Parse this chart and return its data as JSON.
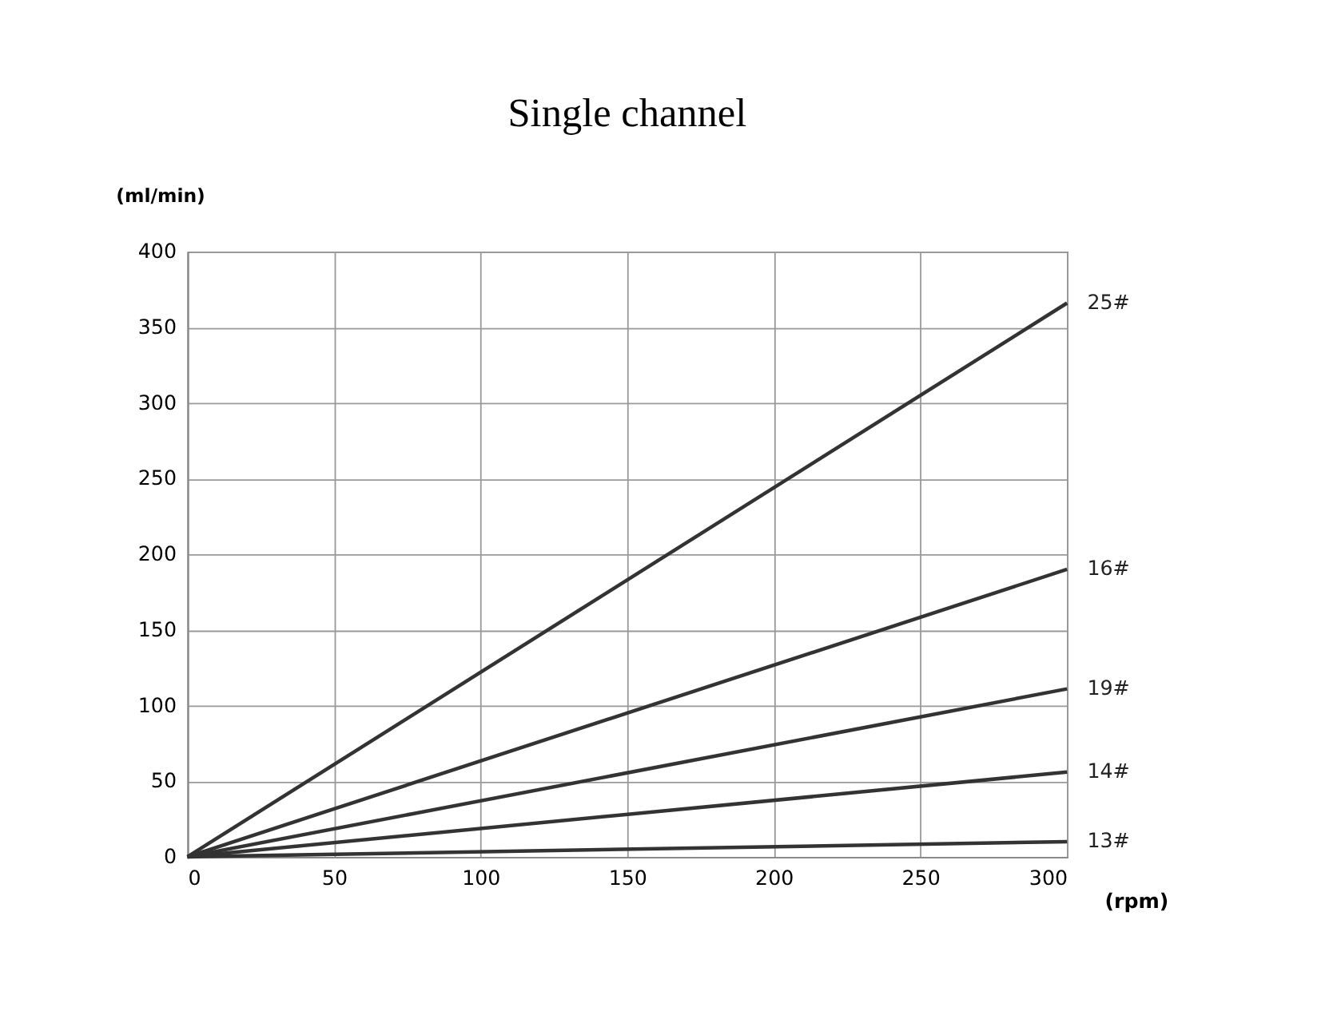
{
  "chart_data": {
    "type": "line",
    "title": "Single channel",
    "xlabel": "(rpm)",
    "ylabel": "(ml/min)",
    "x": [
      0,
      300
    ],
    "series": [
      {
        "name": "25#",
        "color": "#333333",
        "values": [
          0,
          366
        ]
      },
      {
        "name": "16#",
        "color": "#333333",
        "values": [
          0,
          190
        ]
      },
      {
        "name": "19#",
        "color": "#333333",
        "values": [
          0,
          111
        ]
      },
      {
        "name": "14#",
        "color": "#333333",
        "values": [
          0,
          56
        ]
      },
      {
        "name": "13#",
        "color": "#333333",
        "values": [
          0,
          10
        ]
      }
    ],
    "xlim": [
      0,
      300
    ],
    "xticks": [
      0,
      50,
      100,
      150,
      200,
      250,
      300
    ],
    "ylim": [
      0,
      400
    ],
    "yticks": [
      0,
      50,
      100,
      150,
      200,
      250,
      300,
      350,
      400
    ],
    "grid": true,
    "legend": false,
    "marker": "none",
    "line_style": "solid"
  }
}
